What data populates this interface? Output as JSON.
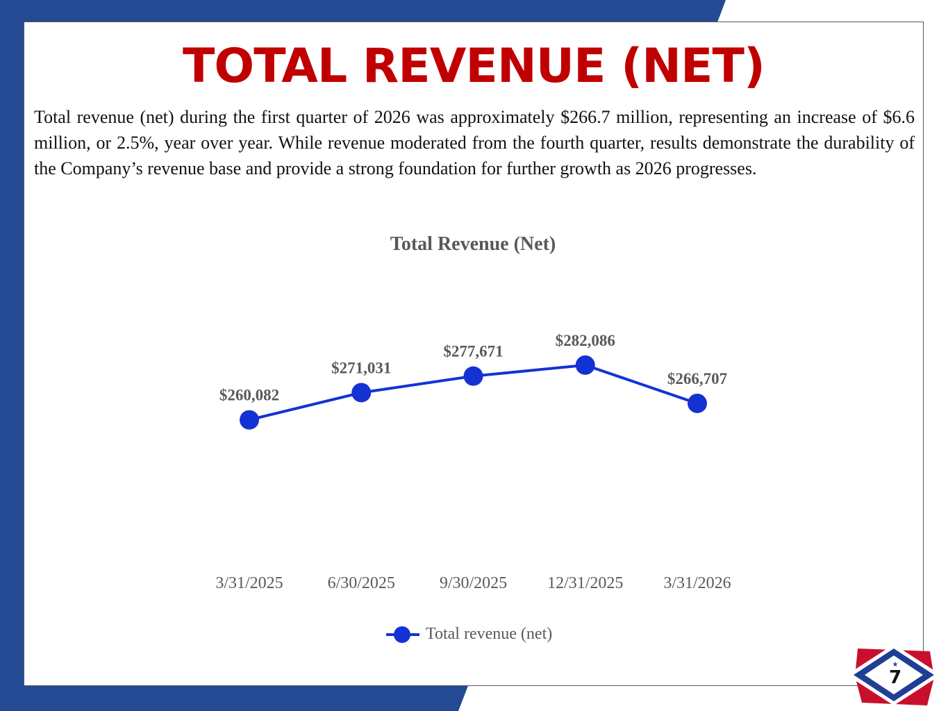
{
  "slide": {
    "title": "TOTAL REVENUE (NET)",
    "body": "Total revenue (net) during the first quarter of 2026 was approximately $266.7 million, representing an increase of $6.6 million, or 2.5%, year over year. While revenue moderated from the fourth quarter, results demonstrate the durability of the Company’s revenue base and provide a strong foundation for further growth as 2026 progresses.",
    "page_number": "7"
  },
  "colors": {
    "title": "#c00000",
    "frame_blue": "#234a93",
    "series": "#1432d4",
    "chart_text": "#595959",
    "badge_red": "#c8102e",
    "badge_blue": "#1f3f95"
  },
  "chart_data": {
    "type": "line",
    "title": "Total Revenue (Net)",
    "categories": [
      "3/31/2025",
      "6/30/2025",
      "9/30/2025",
      "12/31/2025",
      "3/31/2026"
    ],
    "series": [
      {
        "name": "Total revenue (net)",
        "values": [
          260082,
          271031,
          277671,
          282086,
          266707
        ],
        "labels": [
          "$260,082",
          "$271,031",
          "$277,671",
          "$282,086",
          "$266,707"
        ]
      }
    ],
    "ylim": [
      200000,
      320000
    ],
    "grid": false,
    "legend": "bottom"
  }
}
